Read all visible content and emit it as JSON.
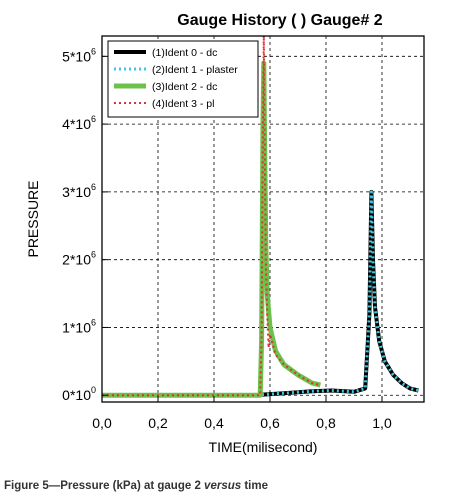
{
  "caption": {
    "lead": "Figure 5—Pressure (kPa) at gauge 2 ",
    "emph": "versus",
    "tail": " time"
  },
  "chart_data": {
    "type": "line",
    "title": "Gauge History ( ) Gauge#  2",
    "xlabel": "TIME(milisecond)",
    "ylabel": "PRESSURE",
    "xlim": [
      0,
      1.15
    ],
    "ylim": [
      -100000,
      5300000
    ],
    "x_ticks": [
      0,
      0.2,
      0.4,
      0.6,
      0.8,
      1.0
    ],
    "x_tick_labels": [
      "0,0",
      "0,2",
      "0,4",
      "0,6",
      "0,8",
      "1,0"
    ],
    "y_ticks": [
      0,
      1000000,
      2000000,
      3000000,
      4000000,
      5000000
    ],
    "y_tick_labels": [
      {
        "base": "0*10",
        "exp": "0"
      },
      {
        "base": "1*10",
        "exp": "6"
      },
      {
        "base": "2*10",
        "exp": "6"
      },
      {
        "base": "3*10",
        "exp": "6"
      },
      {
        "base": "4*10",
        "exp": "6"
      },
      {
        "base": "5*10",
        "exp": "6"
      }
    ],
    "grid": true,
    "legend_position": "top-left",
    "series": [
      {
        "name": "(1)Ident 0 - dc",
        "color": "#000000",
        "style": "solid",
        "width": 4,
        "x": [
          0,
          0.55,
          0.58,
          0.65,
          0.75,
          0.82,
          0.9,
          0.94,
          0.955,
          0.962,
          0.968,
          0.975,
          0.99,
          1.01,
          1.04,
          1.07,
          1.1,
          1.13
        ],
        "y": [
          0,
          0,
          10000,
          30000,
          60000,
          70000,
          50000,
          100000,
          1200000,
          3000000,
          2000000,
          1300000,
          800000,
          500000,
          300000,
          180000,
          100000,
          70000
        ]
      },
      {
        "name": "(2)Ident 1 - plaster",
        "color": "#40c8e0",
        "style": "dotted",
        "width": 3,
        "x": [
          0,
          0.55,
          0.58,
          0.65,
          0.75,
          0.82,
          0.9,
          0.94,
          0.955,
          0.962,
          0.968,
          0.975,
          0.99,
          1.01,
          1.04,
          1.07,
          1.1,
          1.13
        ],
        "y": [
          0,
          0,
          10000,
          30000,
          60000,
          70000,
          50000,
          100000,
          1200000,
          3000000,
          2000000,
          1300000,
          800000,
          500000,
          300000,
          180000,
          100000,
          70000
        ]
      },
      {
        "name": "(3)Ident 2 - dc",
        "color": "#6cc14a",
        "style": "solid",
        "width": 5,
        "x": [
          0,
          0.565,
          0.57,
          0.575,
          0.578,
          0.58,
          0.585,
          0.59,
          0.6,
          0.62,
          0.65,
          0.7,
          0.75,
          0.78
        ],
        "y": [
          0,
          0,
          800000,
          4000000,
          4900000,
          4000000,
          2200000,
          1500000,
          1000000,
          650000,
          450000,
          300000,
          180000,
          150000
        ]
      },
      {
        "name": "(4)Ident 3 - pl",
        "color": "#e03030",
        "style": "dotted",
        "width": 2,
        "x": [
          0,
          0.565,
          0.57,
          0.575,
          0.578,
          0.58,
          0.585,
          0.59,
          0.595,
          0.6,
          0.62,
          0.65,
          0.7,
          0.75,
          0.78
        ],
        "y": [
          0,
          0,
          900000,
          4200000,
          5300000,
          4200000,
          2000000,
          1200000,
          700000,
          900000,
          600000,
          450000,
          300000,
          180000,
          150000
        ]
      }
    ]
  }
}
